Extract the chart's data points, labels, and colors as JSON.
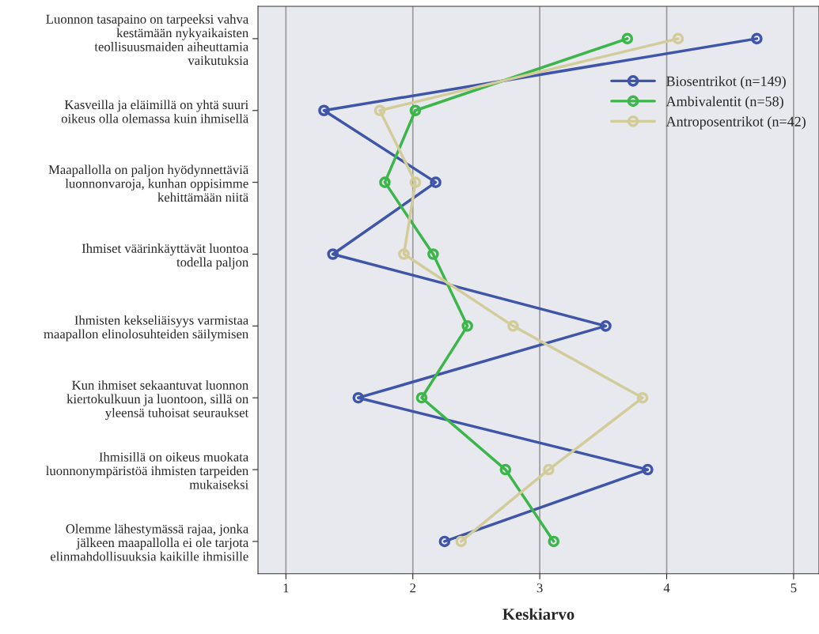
{
  "chart_data": {
    "type": "line",
    "orientation": "horizontal",
    "xlabel": "Keskiarvo",
    "categories": [
      "Luonnon tasapaino on tarpeeksi vahva\nkestämään nykyaikaisten\nteollisuusmaiden aiheuttamia\nvaikutuksia",
      "Kasveilla ja eläimillä on yhtä suuri\noikeus olla olemassa kuin ihmisellä",
      "Maapallolla on paljon hyödynnettäviä\nluonnonvaroja, kunhan oppisimme\nkehittämään niitä",
      "Ihmiset väärinkäyttävät luontoa\ntodella paljon",
      "Ihmisten kekseliäisyys varmistaa\nmaapallon elinolosuhteiden säilymisen",
      "Kun ihmiset sekaantuvat luonnon\nkiertokulkuun ja luontoon, sillä on\nyleensä tuhoisat seuraukset",
      "Ihmisillä on oikeus muokata\nluonnonympäristöä ihmisten tarpeiden\nmukaiseksi",
      "Olemme lähestymässä rajaa, jonka\njälkeen maapallolla ei ole tarjota\nelinmahdollisuuksia kaikille ihmisille"
    ],
    "series": [
      {
        "name": "Biosentrikot (n=149)",
        "color": "#3e55a8",
        "values": [
          4.71,
          1.3,
          2.18,
          1.37,
          3.52,
          1.57,
          3.85,
          2.25
        ]
      },
      {
        "name": "Ambivalentit (n=58)",
        "color": "#3cb54a",
        "values": [
          3.69,
          2.02,
          1.78,
          2.16,
          2.43,
          2.07,
          2.73,
          3.11
        ]
      },
      {
        "name": "Antroposentrikot (n=42)",
        "color": "#d2cc9a",
        "values": [
          4.09,
          1.74,
          2.02,
          1.93,
          2.79,
          3.81,
          3.07,
          2.38
        ]
      }
    ],
    "xlim": [
      0.78,
      5.2
    ],
    "xticks": [
      1,
      2,
      3,
      4,
      5
    ],
    "grid": "x",
    "legend": "top right",
    "marker": "circle",
    "line_style": "solid"
  }
}
